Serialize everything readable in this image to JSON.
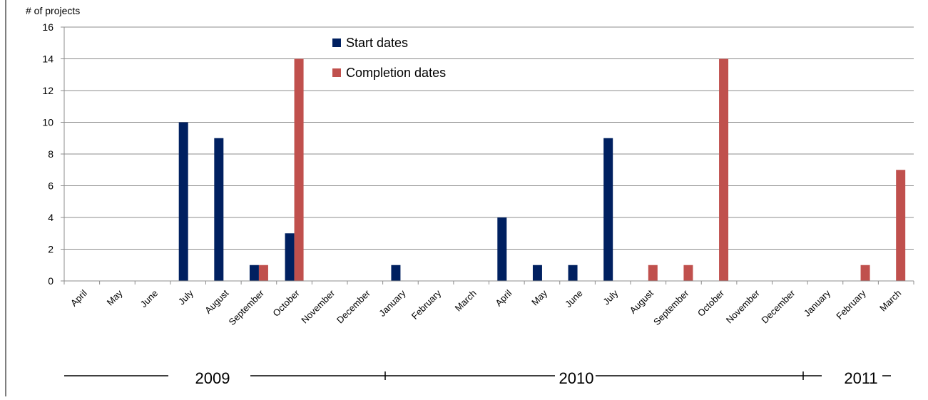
{
  "chart_data": {
    "type": "bar",
    "title": "",
    "ylabel": "# of projects",
    "xlabel": "",
    "ylim": [
      0,
      16
    ],
    "yticks": [
      0,
      2,
      4,
      6,
      8,
      10,
      12,
      14,
      16
    ],
    "grid": true,
    "legend_position": "top-center",
    "categories": [
      "April",
      "May",
      "June",
      "July",
      "August",
      "September",
      "October",
      "November",
      "December",
      "January",
      "February",
      "March",
      "April",
      "May",
      "June",
      "July",
      "August",
      "September",
      "October",
      "November",
      "December",
      "January",
      "February",
      "March"
    ],
    "series": [
      {
        "name": "Start dates",
        "color": "#002060",
        "values": [
          0,
          0,
          0,
          10,
          9,
          1,
          3,
          0,
          0,
          1,
          0,
          0,
          4,
          1,
          1,
          9,
          0,
          0,
          0,
          0,
          0,
          0,
          0,
          0
        ]
      },
      {
        "name": "Completion dates",
        "color": "#c0504d",
        "values": [
          0,
          0,
          0,
          0,
          0,
          1,
          14,
          0,
          0,
          0,
          0,
          0,
          0,
          0,
          0,
          0,
          1,
          1,
          14,
          0,
          0,
          0,
          1,
          7
        ]
      }
    ],
    "year_labels": [
      "2009",
      "2010",
      "2011"
    ]
  }
}
